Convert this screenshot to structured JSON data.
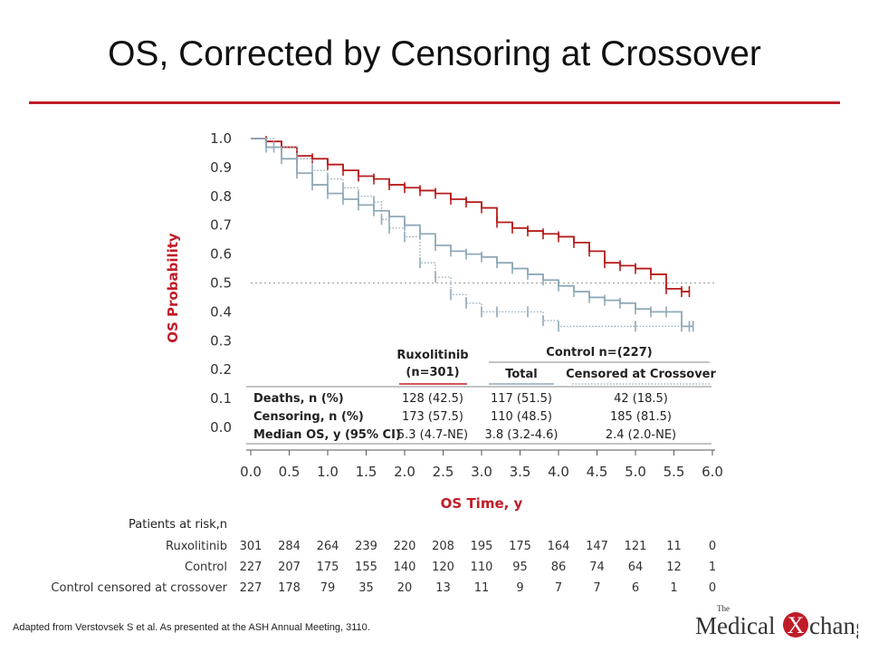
{
  "slide": {
    "title": "OS, Corrected by Censoring at Crossover",
    "footnote": "Adapted from Verstovsek S et al. As presented at the ASH Annual Meeting, 3110.",
    "logo": {
      "small": "The",
      "left": "Medical",
      "x": "X",
      "right": "change"
    },
    "accent_color": "#c01c28"
  },
  "chart_data": {
    "type": "line",
    "ylabel": "OS Probability",
    "xlabel": "OS Time, y",
    "xlim": [
      0.0,
      6.0
    ],
    "ylim": [
      0.0,
      1.0
    ],
    "xticks": [
      "0.0",
      "0.5",
      "1.0",
      "1.5",
      "2.0",
      "2.5",
      "3.0",
      "3.5",
      "4.0",
      "4.5",
      "5.0",
      "5.5",
      "6.0"
    ],
    "yticks": [
      "0.0",
      "0.1",
      "0.2",
      "0.3",
      "0.4",
      "0.5",
      "0.6",
      "0.7",
      "0.8",
      "0.9",
      "1.0"
    ],
    "reference_line_y": 0.5,
    "series": [
      {
        "name": "Ruxolitinib",
        "color": "#b71c1c",
        "style": "solid",
        "x": [
          0.0,
          0.2,
          0.4,
          0.6,
          0.8,
          1.0,
          1.2,
          1.4,
          1.6,
          1.8,
          2.0,
          2.2,
          2.4,
          2.6,
          2.8,
          3.0,
          3.2,
          3.4,
          3.6,
          3.8,
          4.0,
          4.2,
          4.4,
          4.6,
          4.8,
          5.0,
          5.2,
          5.4,
          5.6,
          5.7
        ],
        "y": [
          1.0,
          0.99,
          0.97,
          0.94,
          0.93,
          0.91,
          0.89,
          0.87,
          0.86,
          0.84,
          0.83,
          0.82,
          0.81,
          0.79,
          0.78,
          0.76,
          0.71,
          0.69,
          0.68,
          0.67,
          0.66,
          0.64,
          0.61,
          0.57,
          0.56,
          0.55,
          0.53,
          0.48,
          0.47,
          0.47
        ]
      },
      {
        "name": "Total",
        "color": "#8fa9b8",
        "style": "solid",
        "x": [
          0.0,
          0.2,
          0.4,
          0.6,
          0.8,
          1.0,
          1.2,
          1.4,
          1.6,
          1.8,
          2.0,
          2.2,
          2.4,
          2.6,
          2.8,
          3.0,
          3.2,
          3.4,
          3.6,
          3.8,
          4.0,
          4.2,
          4.4,
          4.6,
          4.8,
          5.0,
          5.2,
          5.4,
          5.6,
          5.75
        ],
        "y": [
          1.0,
          0.97,
          0.93,
          0.88,
          0.84,
          0.81,
          0.79,
          0.77,
          0.75,
          0.73,
          0.7,
          0.67,
          0.63,
          0.61,
          0.6,
          0.59,
          0.57,
          0.55,
          0.53,
          0.51,
          0.49,
          0.47,
          0.45,
          0.44,
          0.43,
          0.41,
          0.4,
          0.4,
          0.35,
          0.35
        ]
      },
      {
        "name": "Censored at Crossover",
        "color": "#8fa9b8",
        "style": "dotted",
        "x": [
          0.0,
          0.3,
          0.6,
          0.8,
          1.0,
          1.2,
          1.4,
          1.6,
          1.7,
          1.8,
          2.0,
          2.2,
          2.4,
          2.6,
          2.8,
          3.0,
          3.2,
          3.6,
          3.8,
          4.0,
          5.0,
          5.7
        ],
        "y": [
          1.0,
          0.97,
          0.93,
          0.89,
          0.86,
          0.83,
          0.8,
          0.78,
          0.72,
          0.69,
          0.66,
          0.57,
          0.52,
          0.46,
          0.43,
          0.4,
          0.4,
          0.4,
          0.37,
          0.35,
          0.35,
          0.35
        ]
      }
    ],
    "table": {
      "group1": {
        "label": "Ruxolitinib",
        "sub": "(n=301)"
      },
      "group2": {
        "label": "Control n=(227)",
        "cols": [
          "Total",
          "Censored at Crossover"
        ]
      },
      "rows": [
        {
          "label": "Deaths, n (%)",
          "values": [
            "128 (42.5)",
            "117 (51.5)",
            "42 (18.5)"
          ]
        },
        {
          "label": "Censoring, n (%)",
          "values": [
            "173 (57.5)",
            "110 (48.5)",
            "185 (81.5)"
          ]
        },
        {
          "label": "Median OS, y (95% CI)",
          "values": [
            "5.3 (4.7-NE)",
            "3.8 (3.2-4.6)",
            "2.4 (2.0-NE)"
          ]
        }
      ]
    },
    "at_risk": {
      "heading": "Patients at risk,n",
      "rows": [
        {
          "label": "Ruxolitinib",
          "values": [
            "301",
            "284",
            "264",
            "239",
            "220",
            "208",
            "195",
            "175",
            "164",
            "147",
            "121",
            "11",
            "0"
          ]
        },
        {
          "label": "Control",
          "values": [
            "227",
            "207",
            "175",
            "155",
            "140",
            "120",
            "110",
            "95",
            "86",
            "74",
            "64",
            "12",
            "1"
          ]
        },
        {
          "label": "Control censored at crossover",
          "values": [
            "227",
            "178",
            "79",
            "35",
            "20",
            "13",
            "11",
            "9",
            "7",
            "7",
            "6",
            "1",
            "0"
          ]
        }
      ]
    }
  }
}
